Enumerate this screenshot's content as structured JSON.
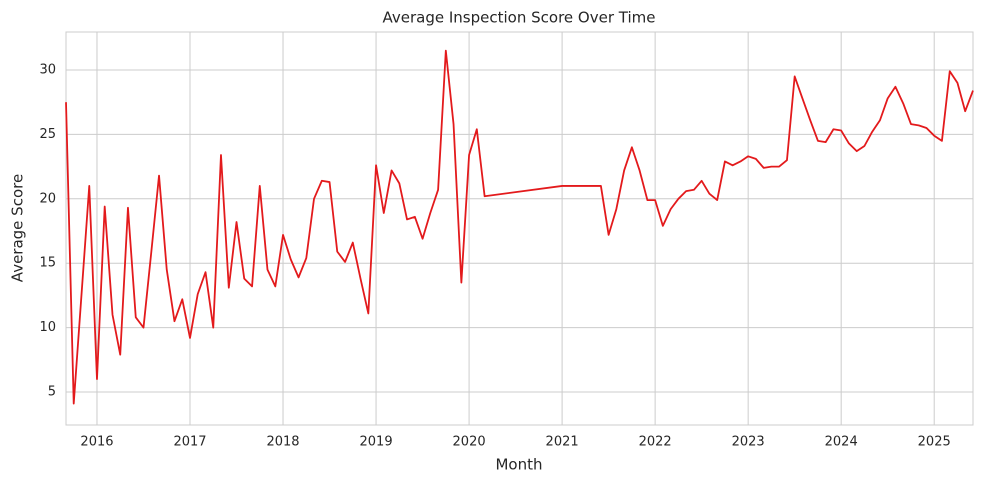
{
  "chart_data": {
    "type": "line",
    "title": "Average Inspection Score Over Time",
    "x_label": "Month",
    "y_label": "Average Score",
    "color": "#e31a1c",
    "grid": true,
    "x": [
      2015.667,
      2015.75,
      2015.917,
      2016.0,
      2016.083,
      2016.167,
      2016.25,
      2016.333,
      2016.417,
      2016.5,
      2016.583,
      2016.667,
      2016.75,
      2016.833,
      2016.917,
      2017.0,
      2017.083,
      2017.167,
      2017.25,
      2017.333,
      2017.417,
      2017.5,
      2017.583,
      2017.667,
      2017.75,
      2017.833,
      2017.917,
      2018.0,
      2018.083,
      2018.167,
      2018.25,
      2018.333,
      2018.417,
      2018.5,
      2018.583,
      2018.667,
      2018.75,
      2018.833,
      2018.917,
      2019.0,
      2019.083,
      2019.167,
      2019.25,
      2019.333,
      2019.417,
      2019.5,
      2019.583,
      2019.667,
      2019.75,
      2019.833,
      2019.917,
      2020.0,
      2020.083,
      2020.167,
      2021.0,
      2021.417,
      2021.5,
      2021.583,
      2021.667,
      2021.75,
      2021.833,
      2021.917,
      2022.0,
      2022.083,
      2022.167,
      2022.25,
      2022.333,
      2022.417,
      2022.5,
      2022.583,
      2022.667,
      2022.75,
      2022.833,
      2022.917,
      2023.0,
      2023.083,
      2023.167,
      2023.25,
      2023.333,
      2023.417,
      2023.5,
      2023.583,
      2023.667,
      2023.75,
      2023.833,
      2023.917,
      2024.0,
      2024.083,
      2024.167,
      2024.25,
      2024.333,
      2024.417,
      2024.5,
      2024.583,
      2024.667,
      2024.75,
      2024.833,
      2024.917,
      2025.0,
      2025.083,
      2025.167,
      2025.25,
      2025.333,
      2025.417
    ],
    "values": [
      27.5,
      4.1,
      21.0,
      6.0,
      19.4,
      11.0,
      7.9,
      19.3,
      10.8,
      10.0,
      15.8,
      21.8,
      14.5,
      10.5,
      12.2,
      9.2,
      12.6,
      14.3,
      10.0,
      23.4,
      13.1,
      18.2,
      13.8,
      13.2,
      21.0,
      14.5,
      13.2,
      17.2,
      15.3,
      13.9,
      15.4,
      20.0,
      21.4,
      21.3,
      15.9,
      15.1,
      16.6,
      13.8,
      11.1,
      22.6,
      18.9,
      22.2,
      21.2,
      18.4,
      18.6,
      16.9,
      18.9,
      20.7,
      31.5,
      25.8,
      13.5,
      23.4,
      25.4,
      20.2,
      21.0,
      21.0,
      17.2,
      19.2,
      22.2,
      24.0,
      22.2,
      19.9,
      19.9,
      17.9,
      19.2,
      20.0,
      20.6,
      20.7,
      21.4,
      20.4,
      19.9,
      22.9,
      22.6,
      22.9,
      23.3,
      23.1,
      22.4,
      22.5,
      22.5,
      23.0,
      29.5,
      27.8,
      26.1,
      24.5,
      24.4,
      25.4,
      25.3,
      24.3,
      23.7,
      24.1,
      25.2,
      26.1,
      27.8,
      28.7,
      27.4,
      25.8,
      25.7,
      25.5,
      24.9,
      24.5,
      29.9,
      29.0,
      26.8,
      28.4
    ],
    "xlim": [
      2015.667,
      2025.417
    ],
    "xticks": [
      2016,
      2017,
      2018,
      2019,
      2020,
      2021,
      2022,
      2023,
      2024,
      2025
    ],
    "ylim": [
      2.44,
      32.95
    ],
    "yticks": [
      5,
      10,
      15,
      20,
      25,
      30
    ]
  }
}
